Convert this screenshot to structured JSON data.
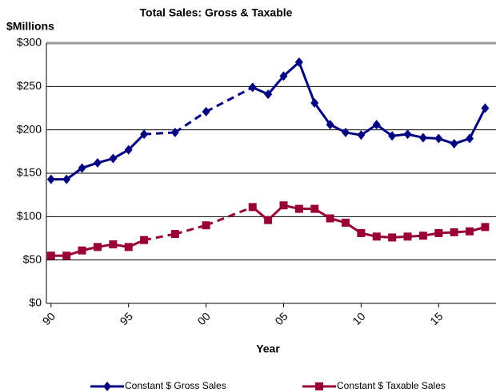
{
  "chart_data": {
    "type": "line",
    "title": "Total Sales: Gross & Taxable",
    "y_label": "$Millions",
    "x_label": "Year",
    "xlim": [
      1989.7,
      2018.7
    ],
    "xticks": [
      {
        "value": 1990,
        "label": "90"
      },
      {
        "value": 1995,
        "label": "95"
      },
      {
        "value": 2000,
        "label": "00"
      },
      {
        "value": 2005,
        "label": "05"
      },
      {
        "value": 2010,
        "label": "10"
      },
      {
        "value": 2015,
        "label": "15"
      }
    ],
    "ylim": [
      0,
      300
    ],
    "yticks": [
      {
        "value": 0,
        "label": "$0"
      },
      {
        "value": 50,
        "label": "$50"
      },
      {
        "value": 100,
        "label": "$100"
      },
      {
        "value": 150,
        "label": "$150"
      },
      {
        "value": 200,
        "label": "$200"
      },
      {
        "value": 250,
        "label": "$250"
      },
      {
        "value": 300,
        "label": "$300"
      }
    ],
    "grid": true,
    "legend": "bottom",
    "x": [
      1990,
      1991,
      1992,
      1993,
      1994,
      1995,
      1996,
      1998,
      2000,
      2003,
      2004,
      2005,
      2006,
      2007,
      2008,
      2009,
      2010,
      2011,
      2012,
      2013,
      2014,
      2015,
      2016,
      2017,
      2018
    ],
    "series": [
      {
        "name": "Constant $ Gross Sales",
        "color": "#000080",
        "marker": "diamond",
        "values": [
          143,
          143,
          156,
          162,
          167,
          177,
          195,
          197,
          221,
          249,
          241,
          262,
          278,
          231,
          206,
          197,
          194,
          206,
          193,
          195,
          191,
          190,
          184,
          190,
          225
        ]
      },
      {
        "name": "Constant $ Taxable Sales",
        "color": "#990033",
        "marker": "square",
        "values": [
          55,
          55,
          61,
          65,
          68,
          65,
          73,
          80,
          90,
          111,
          96,
          113,
          109,
          109,
          98,
          93,
          81,
          77,
          76,
          77,
          78,
          81,
          82,
          83,
          88
        ]
      }
    ]
  }
}
